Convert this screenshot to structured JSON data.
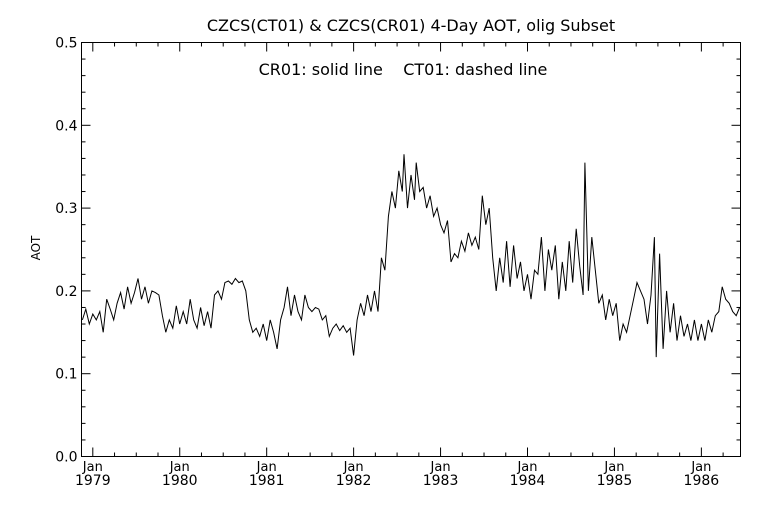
{
  "chart_data": {
    "type": "line",
    "title": "CZCS(CT01) & CZCS(CR01) 4-Day AOT, olig Subset",
    "annotation": "CR01: solid line    CT01: dashed line",
    "ylabel": "AOT",
    "xlabel": "",
    "xlim": [
      1978.87,
      1986.45
    ],
    "ylim": [
      0.0,
      0.5
    ],
    "grid": false,
    "y_ticks": [
      {
        "value": 0.0,
        "label": "0.0"
      },
      {
        "value": 0.1,
        "label": "0.1"
      },
      {
        "value": 0.2,
        "label": "0.2"
      },
      {
        "value": 0.3,
        "label": "0.3"
      },
      {
        "value": 0.4,
        "label": "0.4"
      },
      {
        "value": 0.5,
        "label": "0.5"
      }
    ],
    "x_ticks": [
      {
        "value": 1979.0,
        "month": "Jan",
        "year": "1979"
      },
      {
        "value": 1980.0,
        "month": "Jan",
        "year": "1980"
      },
      {
        "value": 1981.0,
        "month": "Jan",
        "year": "1981"
      },
      {
        "value": 1982.0,
        "month": "Jan",
        "year": "1982"
      },
      {
        "value": 1983.0,
        "month": "Jan",
        "year": "1983"
      },
      {
        "value": 1984.0,
        "month": "Jan",
        "year": "1984"
      },
      {
        "value": 1985.0,
        "month": "Jan",
        "year": "1985"
      },
      {
        "value": 1986.0,
        "month": "Jan",
        "year": "1986"
      }
    ],
    "series": [
      {
        "name": "CR01",
        "style": "solid",
        "color": "#000000",
        "points": [
          [
            1978.88,
            0.165
          ],
          [
            1978.92,
            0.178
          ],
          [
            1978.96,
            0.16
          ],
          [
            1979.0,
            0.172
          ],
          [
            1979.04,
            0.165
          ],
          [
            1979.08,
            0.175
          ],
          [
            1979.12,
            0.15
          ],
          [
            1979.16,
            0.19
          ],
          [
            1979.2,
            0.178
          ],
          [
            1979.24,
            0.165
          ],
          [
            1979.28,
            0.185
          ],
          [
            1979.32,
            0.198
          ],
          [
            1979.36,
            0.178
          ],
          [
            1979.4,
            0.205
          ],
          [
            1979.44,
            0.185
          ],
          [
            1979.48,
            0.198
          ],
          [
            1979.52,
            0.215
          ],
          [
            1979.56,
            0.19
          ],
          [
            1979.6,
            0.205
          ],
          [
            1979.64,
            0.185
          ],
          [
            1979.68,
            0.2
          ],
          [
            1979.72,
            0.198
          ],
          [
            1979.76,
            0.195
          ],
          [
            1979.8,
            0.17
          ],
          [
            1979.84,
            0.15
          ],
          [
            1979.88,
            0.165
          ],
          [
            1979.92,
            0.155
          ],
          [
            1979.96,
            0.182
          ],
          [
            1980.0,
            0.16
          ],
          [
            1980.04,
            0.175
          ],
          [
            1980.08,
            0.16
          ],
          [
            1980.12,
            0.19
          ],
          [
            1980.16,
            0.165
          ],
          [
            1980.2,
            0.155
          ],
          [
            1980.24,
            0.18
          ],
          [
            1980.28,
            0.158
          ],
          [
            1980.32,
            0.175
          ],
          [
            1980.36,
            0.155
          ],
          [
            1980.4,
            0.195
          ],
          [
            1980.44,
            0.2
          ],
          [
            1980.48,
            0.19
          ],
          [
            1980.52,
            0.21
          ],
          [
            1980.56,
            0.212
          ],
          [
            1980.6,
            0.208
          ],
          [
            1980.64,
            0.215
          ],
          [
            1980.68,
            0.21
          ],
          [
            1980.72,
            0.212
          ],
          [
            1980.76,
            0.2
          ],
          [
            1980.8,
            0.165
          ],
          [
            1980.84,
            0.15
          ],
          [
            1980.88,
            0.155
          ],
          [
            1980.92,
            0.145
          ],
          [
            1980.96,
            0.16
          ],
          [
            1981.0,
            0.14
          ],
          [
            1981.04,
            0.165
          ],
          [
            1981.08,
            0.15
          ],
          [
            1981.12,
            0.13
          ],
          [
            1981.16,
            0.165
          ],
          [
            1981.2,
            0.18
          ],
          [
            1981.24,
            0.205
          ],
          [
            1981.28,
            0.17
          ],
          [
            1981.32,
            0.195
          ],
          [
            1981.36,
            0.175
          ],
          [
            1981.4,
            0.165
          ],
          [
            1981.44,
            0.195
          ],
          [
            1981.48,
            0.18
          ],
          [
            1981.52,
            0.175
          ],
          [
            1981.56,
            0.18
          ],
          [
            1981.6,
            0.178
          ],
          [
            1981.64,
            0.165
          ],
          [
            1981.68,
            0.17
          ],
          [
            1981.72,
            0.145
          ],
          [
            1981.76,
            0.155
          ],
          [
            1981.8,
            0.16
          ],
          [
            1981.84,
            0.152
          ],
          [
            1981.88,
            0.158
          ],
          [
            1981.92,
            0.15
          ],
          [
            1981.96,
            0.155
          ],
          [
            1982.0,
            0.122
          ],
          [
            1982.04,
            0.165
          ],
          [
            1982.08,
            0.185
          ],
          [
            1982.12,
            0.17
          ],
          [
            1982.16,
            0.195
          ],
          [
            1982.2,
            0.175
          ],
          [
            1982.24,
            0.2
          ],
          [
            1982.28,
            0.175
          ],
          [
            1982.32,
            0.24
          ],
          [
            1982.36,
            0.225
          ],
          [
            1982.4,
            0.29
          ],
          [
            1982.44,
            0.32
          ],
          [
            1982.48,
            0.3
          ],
          [
            1982.52,
            0.345
          ],
          [
            1982.56,
            0.32
          ],
          [
            1982.58,
            0.365
          ],
          [
            1982.62,
            0.3
          ],
          [
            1982.66,
            0.34
          ],
          [
            1982.7,
            0.31
          ],
          [
            1982.72,
            0.355
          ],
          [
            1982.76,
            0.32
          ],
          [
            1982.8,
            0.325
          ],
          [
            1982.84,
            0.3
          ],
          [
            1982.88,
            0.315
          ],
          [
            1982.92,
            0.29
          ],
          [
            1982.96,
            0.3
          ],
          [
            1983.0,
            0.28
          ],
          [
            1983.04,
            0.27
          ],
          [
            1983.08,
            0.285
          ],
          [
            1983.12,
            0.235
          ],
          [
            1983.16,
            0.245
          ],
          [
            1983.2,
            0.24
          ],
          [
            1983.24,
            0.26
          ],
          [
            1983.28,
            0.248
          ],
          [
            1983.32,
            0.27
          ],
          [
            1983.36,
            0.255
          ],
          [
            1983.4,
            0.265
          ],
          [
            1983.44,
            0.25
          ],
          [
            1983.48,
            0.315
          ],
          [
            1983.52,
            0.28
          ],
          [
            1983.56,
            0.3
          ],
          [
            1983.6,
            0.24
          ],
          [
            1983.64,
            0.2
          ],
          [
            1983.68,
            0.24
          ],
          [
            1983.72,
            0.21
          ],
          [
            1983.76,
            0.26
          ],
          [
            1983.8,
            0.205
          ],
          [
            1983.84,
            0.255
          ],
          [
            1983.88,
            0.215
          ],
          [
            1983.92,
            0.235
          ],
          [
            1983.96,
            0.2
          ],
          [
            1984.0,
            0.22
          ],
          [
            1984.04,
            0.19
          ],
          [
            1984.08,
            0.225
          ],
          [
            1984.12,
            0.22
          ],
          [
            1984.16,
            0.265
          ],
          [
            1984.2,
            0.2
          ],
          [
            1984.24,
            0.25
          ],
          [
            1984.28,
            0.225
          ],
          [
            1984.32,
            0.255
          ],
          [
            1984.36,
            0.19
          ],
          [
            1984.4,
            0.235
          ],
          [
            1984.44,
            0.2
          ],
          [
            1984.48,
            0.26
          ],
          [
            1984.52,
            0.21
          ],
          [
            1984.56,
            0.275
          ],
          [
            1984.6,
            0.23
          ],
          [
            1984.64,
            0.195
          ],
          [
            1984.66,
            0.355
          ],
          [
            1984.7,
            0.2
          ],
          [
            1984.74,
            0.265
          ],
          [
            1984.78,
            0.225
          ],
          [
            1984.82,
            0.185
          ],
          [
            1984.86,
            0.195
          ],
          [
            1984.9,
            0.165
          ],
          [
            1984.94,
            0.19
          ],
          [
            1984.98,
            0.17
          ],
          [
            1985.02,
            0.185
          ],
          [
            1985.06,
            0.14
          ],
          [
            1985.1,
            0.16
          ],
          [
            1985.14,
            0.15
          ],
          [
            1985.18,
            0.17
          ],
          [
            1985.22,
            0.19
          ],
          [
            1985.26,
            0.21
          ],
          [
            1985.3,
            0.2
          ],
          [
            1985.34,
            0.19
          ],
          [
            1985.38,
            0.16
          ],
          [
            1985.42,
            0.195
          ],
          [
            1985.46,
            0.265
          ],
          [
            1985.48,
            0.12
          ],
          [
            1985.52,
            0.245
          ],
          [
            1985.56,
            0.13
          ],
          [
            1985.6,
            0.2
          ],
          [
            1985.64,
            0.15
          ],
          [
            1985.68,
            0.185
          ],
          [
            1985.72,
            0.14
          ],
          [
            1985.76,
            0.17
          ],
          [
            1985.8,
            0.145
          ],
          [
            1985.84,
            0.16
          ],
          [
            1985.88,
            0.14
          ],
          [
            1985.92,
            0.165
          ],
          [
            1985.96,
            0.14
          ],
          [
            1986.0,
            0.16
          ],
          [
            1986.04,
            0.14
          ],
          [
            1986.08,
            0.165
          ],
          [
            1986.12,
            0.15
          ],
          [
            1986.16,
            0.17
          ],
          [
            1986.2,
            0.175
          ],
          [
            1986.24,
            0.205
          ],
          [
            1986.28,
            0.19
          ],
          [
            1986.32,
            0.185
          ],
          [
            1986.36,
            0.175
          ],
          [
            1986.4,
            0.17
          ],
          [
            1986.44,
            0.18
          ]
        ]
      }
    ]
  }
}
